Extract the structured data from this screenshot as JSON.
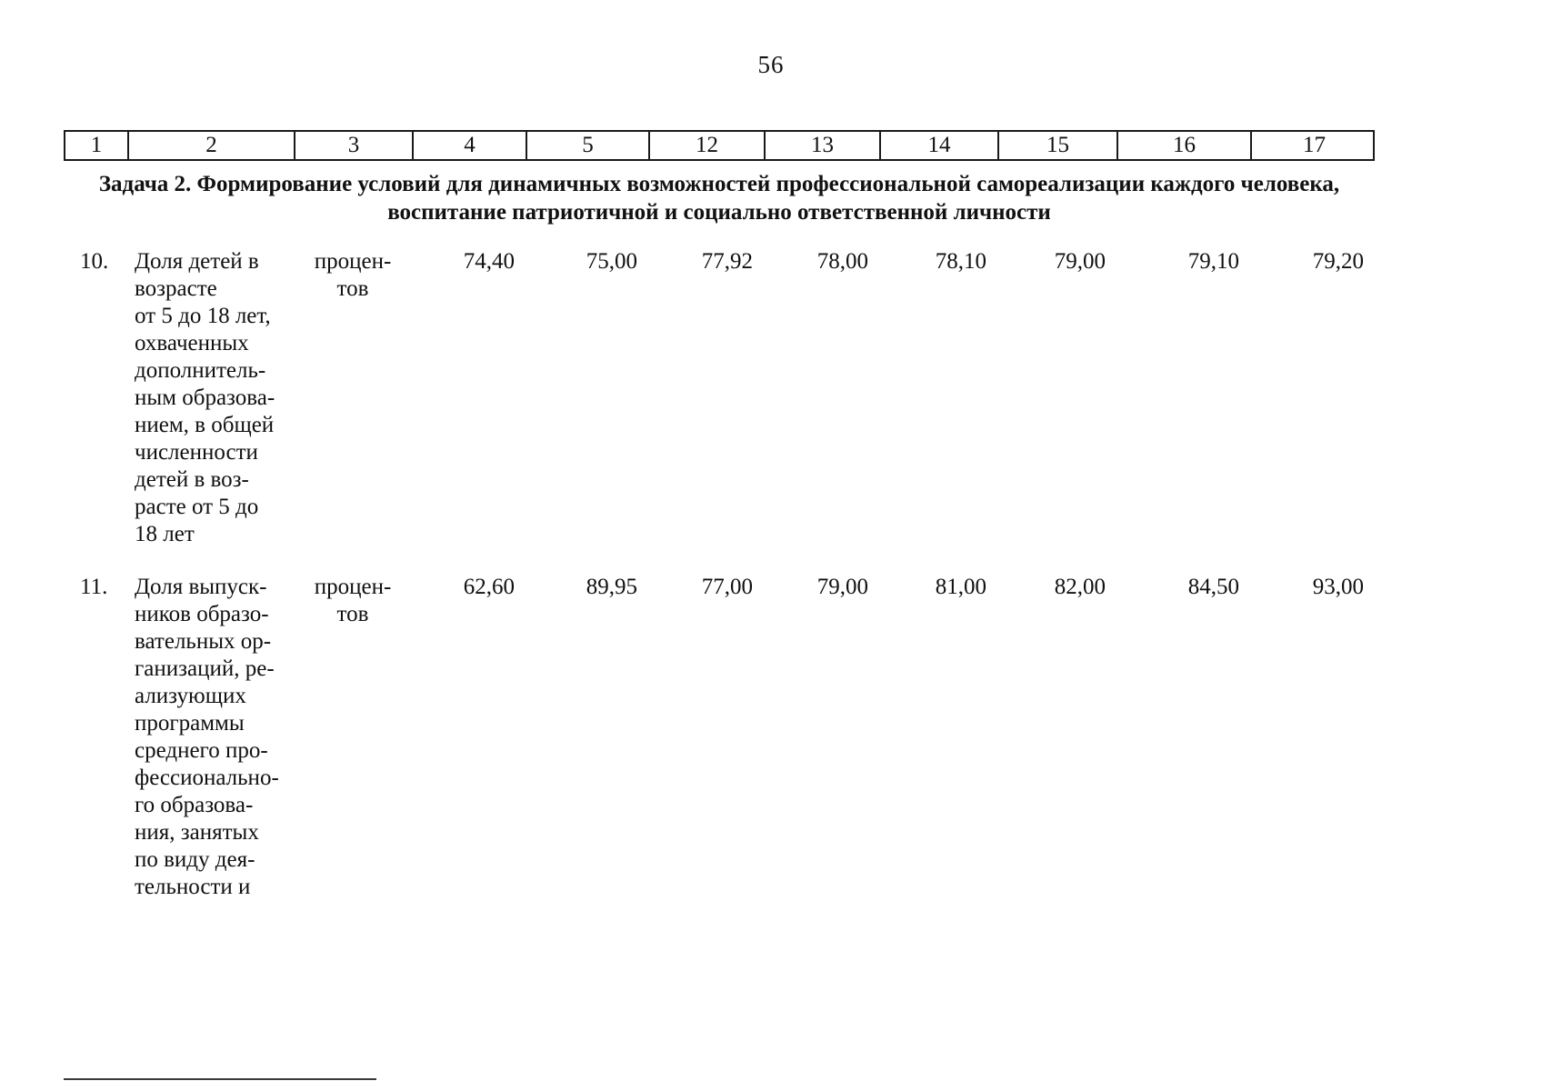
{
  "page": {
    "number": "56"
  },
  "table": {
    "header_columns": [
      "1",
      "2",
      "3",
      "4",
      "5",
      "12",
      "13",
      "14",
      "15",
      "16",
      "17"
    ],
    "section_title_line1": "Задача 2. Формирование условий для динамичных возможностей профессиональной самореализации каждого человека,",
    "section_title_line2": "воспитание патриотичной и социально ответственной личности",
    "rows": [
      {
        "num": "10.",
        "name": "Доля детей в\nвозрасте\nот 5 до 18 лет,\nохваченных\nдополнитель-\nным образова-\nнием, в общей\nчисленности\nдетей в воз-\nрасте от 5 до\n18 лет",
        "unit": "процен-\nтов",
        "values": [
          "74,40",
          "75,00",
          "77,92",
          "78,00",
          "78,10",
          "79,00",
          "79,10",
          "79,20"
        ]
      },
      {
        "num": "11.",
        "name": "Доля выпуск-\nников образо-\nвательных ор-\nганизаций, ре-\nализующих\nпрограммы\nсреднего про-\nфессионально-\nго образова-\nния, занятых\nпо виду дея-\nтельности и",
        "unit": "процен-\nтов",
        "values": [
          "62,60",
          "89,95",
          "77,00",
          "79,00",
          "81,00",
          "82,00",
          "84,50",
          "93,00"
        ]
      }
    ]
  }
}
